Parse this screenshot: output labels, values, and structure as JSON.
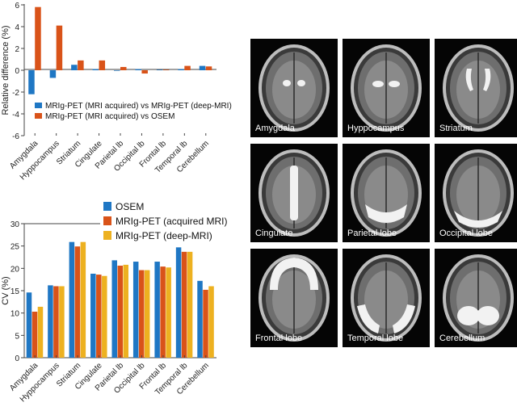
{
  "colors": {
    "blue": "#1f77c4",
    "orange": "#d95319",
    "yellow": "#edb120",
    "highlight": "#f2f2f2"
  },
  "chart_data": [
    {
      "type": "bar",
      "categories": [
        "Amygdala",
        "Hyppocampus",
        "Striatum",
        "Cingulate",
        "Parietal lb",
        "Occipital lb",
        "Frontal lb",
        "Temporal lb",
        "Cerebellum"
      ],
      "series": [
        {
          "name": "MRIg-PET (MRI acquired) vs MRIg-PET (deep-MRI)",
          "color": "#1f77c4",
          "values": [
            -2.2,
            -0.7,
            0.5,
            0.1,
            -0.05,
            0.1,
            0.05,
            0.1,
            0.4
          ]
        },
        {
          "name": "MRIg-PET (MRI acquired) vs OSEM",
          "color": "#d95319",
          "values": [
            5.8,
            4.1,
            0.9,
            0.9,
            0.3,
            -0.3,
            0.05,
            0.4,
            0.35
          ]
        }
      ],
      "ylabel": "Relative difference (%)",
      "xlabel": "",
      "ylim": [
        -6,
        6
      ],
      "yticks": [
        "6",
        "4",
        "2",
        "0",
        "-2",
        "-4",
        "-6"
      ],
      "grid": false,
      "legend_position": "bottom"
    },
    {
      "type": "bar",
      "categories": [
        "Amygdala",
        "Hyppocampus",
        "Striatum",
        "Cingulate",
        "Parietal lb",
        "Occipital lb",
        "Frontal lb",
        "Temporal lb",
        "Cerebellum"
      ],
      "series": [
        {
          "name": "OSEM",
          "color": "#1f77c4",
          "values": [
            14.6,
            16.2,
            25.9,
            18.8,
            21.8,
            21.5,
            21.5,
            24.7,
            17.2
          ]
        },
        {
          "name": "MRIg-PET (acquired MRI)",
          "color": "#d95319",
          "values": [
            10.3,
            16.0,
            24.9,
            18.6,
            20.6,
            19.6,
            20.4,
            23.7,
            15.2
          ]
        },
        {
          "name": "MRIg-PET (deep-MRI)",
          "color": "#edb120",
          "values": [
            11.4,
            16.0,
            25.9,
            18.3,
            20.8,
            19.6,
            20.2,
            23.7,
            16.0
          ]
        }
      ],
      "ylabel": "CV (%)",
      "xlabel": "",
      "ylim": [
        0,
        30
      ],
      "yticks": [
        "30",
        "25",
        "20",
        "15",
        "10",
        "5",
        "0"
      ],
      "grid": false,
      "legend_position": "top"
    }
  ],
  "brain_panels": [
    "Amygdala",
    "Hyppocampus",
    "Striatum",
    "Cingulate",
    "Parietal lobe",
    "Occipital lobe",
    "Frontal lobe",
    "Temporal lobe",
    "Cerebellum"
  ]
}
